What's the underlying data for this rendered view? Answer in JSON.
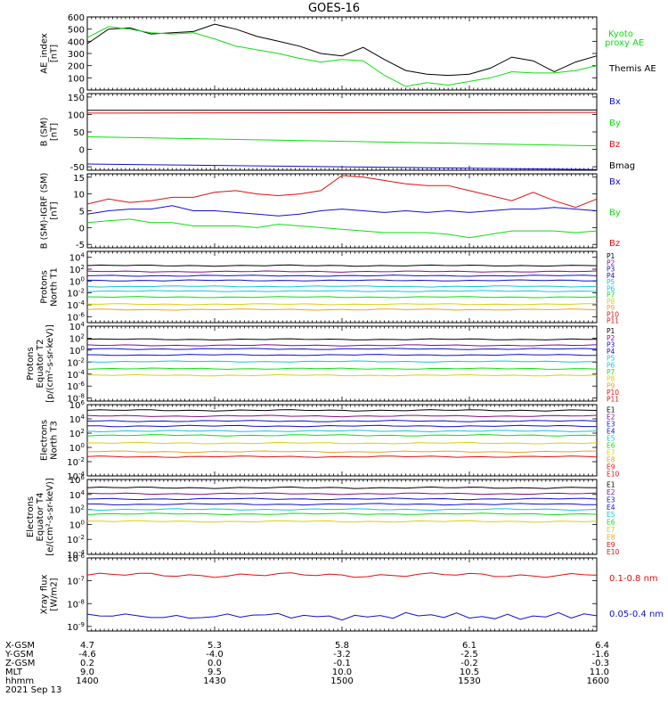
{
  "title": "GOES-16",
  "colors": {
    "black": "#000000",
    "red": "#e01010",
    "green": "#10dd10",
    "blue": "#1010cc",
    "cyan": "#10c8d8",
    "yellow": "#d8d010",
    "orange": "#f0a020",
    "purple": "#801080"
  },
  "chart_data": [
    {
      "type": "line",
      "panel": "ae",
      "ylabel": [
        "AE_index",
        "[nT]"
      ],
      "ylim": [
        0,
        600
      ],
      "yticks": [
        "600",
        "500",
        "400",
        "300",
        "200",
        "100",
        "0"
      ],
      "legend": [
        {
          "name": "Kyoto",
          "color": "green"
        },
        {
          "name": "proxy AE",
          "color": "green"
        },
        {
          "name": "Themis AE",
          "color": "black"
        }
      ],
      "x": [
        1400,
        1405,
        1410,
        1415,
        1420,
        1425,
        1430,
        1435,
        1440,
        1445,
        1450,
        1455,
        1500,
        1505,
        1510,
        1515,
        1520,
        1525,
        1530,
        1535,
        1540,
        1545,
        1550,
        1555,
        1600
      ],
      "series": [
        {
          "name": "Themis AE",
          "color": "black",
          "values": [
            380,
            500,
            510,
            460,
            470,
            480,
            540,
            500,
            440,
            400,
            360,
            300,
            280,
            350,
            250,
            160,
            130,
            120,
            130,
            180,
            270,
            240,
            150,
            230,
            280
          ]
        },
        {
          "name": "Kyoto proxy AE",
          "color": "green",
          "values": [
            430,
            520,
            500,
            470,
            460,
            470,
            420,
            360,
            330,
            300,
            260,
            230,
            250,
            240,
            120,
            30,
            60,
            40,
            70,
            100,
            150,
            140,
            140,
            160,
            200
          ]
        }
      ]
    },
    {
      "type": "line",
      "panel": "bsm",
      "ylabel": [
        "B (SM)",
        "[nT]"
      ],
      "ylim": [
        -60,
        160
      ],
      "yticks": [
        "150",
        "100",
        "50",
        "0",
        "-50"
      ],
      "legend": [
        {
          "name": "Bx",
          "color": "blue"
        },
        {
          "name": "By",
          "color": "green"
        },
        {
          "name": "Bz",
          "color": "red"
        },
        {
          "name": "Bmag",
          "color": "black"
        }
      ],
      "x": [
        1400,
        1600
      ],
      "series": [
        {
          "name": "Bmag",
          "color": "black",
          "values": [
            112,
            113
          ]
        },
        {
          "name": "Bz",
          "color": "red",
          "values": [
            104,
            106
          ]
        },
        {
          "name": "By",
          "color": "green",
          "values": [
            36,
            10
          ]
        },
        {
          "name": "Bx",
          "color": "blue",
          "values": [
            -42,
            -58
          ]
        }
      ]
    },
    {
      "type": "line",
      "panel": "bdiff",
      "ylabel": [
        "B (SM)-IGRF (SM)",
        "[nT]"
      ],
      "ylim": [
        -6,
        16
      ],
      "yticks": [
        "15",
        "10",
        "5",
        "0",
        "-5"
      ],
      "legend": [
        {
          "name": "Bx",
          "color": "blue"
        },
        {
          "name": "By",
          "color": "green"
        },
        {
          "name": "Bz",
          "color": "red"
        }
      ],
      "x": [
        1400,
        1405,
        1410,
        1415,
        1420,
        1425,
        1430,
        1435,
        1440,
        1445,
        1450,
        1455,
        1500,
        1505,
        1510,
        1515,
        1520,
        1525,
        1530,
        1535,
        1540,
        1545,
        1550,
        1555,
        1600
      ],
      "series": [
        {
          "name": "Bz",
          "color": "red",
          "values": [
            7,
            8.5,
            7.5,
            8,
            9,
            9,
            10.5,
            11,
            10,
            9.5,
            10,
            11,
            15.5,
            15,
            14,
            13,
            12.5,
            12.5,
            11,
            9.5,
            8,
            10.5,
            8,
            6,
            8.5
          ]
        },
        {
          "name": "Bx",
          "color": "blue",
          "values": [
            4,
            5,
            5.5,
            5.5,
            6.5,
            5,
            5,
            4.5,
            4,
            3.5,
            4,
            5,
            5.5,
            5,
            4.5,
            5,
            4.5,
            5,
            4.5,
            5,
            5.5,
            5.5,
            6,
            5.5,
            5
          ]
        },
        {
          "name": "By",
          "color": "green",
          "values": [
            1.5,
            2,
            2.5,
            1.5,
            1.5,
            0.5,
            0.5,
            0.5,
            0,
            1,
            0.5,
            0,
            -0.5,
            -1,
            -1.5,
            -1.5,
            -1.5,
            -2,
            -3,
            -2,
            -1,
            -1,
            -1,
            -1.5,
            -1
          ]
        }
      ]
    },
    {
      "type": "line",
      "panel": "p1",
      "log": true,
      "ylabel": [
        "Protons",
        "North T1"
      ],
      "yticks": [
        "10^4",
        "10^2",
        "10^0",
        "10^-2",
        "10^-4",
        "10^-6"
      ],
      "ylim_exp": [
        -7,
        5
      ],
      "legend": [
        {
          "name": "P1",
          "color": "black"
        },
        {
          "name": "P2",
          "color": "purple"
        },
        {
          "name": "P3",
          "color": "blue"
        },
        {
          "name": "P4",
          "color": "blue"
        },
        {
          "name": "P5",
          "color": "cyan"
        },
        {
          "name": "P6",
          "color": "cyan"
        },
        {
          "name": "P7",
          "color": "green"
        },
        {
          "name": "P8",
          "color": "yellow"
        },
        {
          "name": "P9",
          "color": "orange"
        },
        {
          "name": "P10",
          "color": "red"
        },
        {
          "name": "P11",
          "color": "red"
        }
      ],
      "levels": [
        {
          "color": "black",
          "exp": 2.6
        },
        {
          "color": "purple",
          "exp": 1.6
        },
        {
          "color": "blue",
          "exp": 0.9
        },
        {
          "color": "blue",
          "exp": 0.1
        },
        {
          "color": "cyan",
          "exp": -0.9
        },
        {
          "color": "cyan",
          "exp": -1.7
        },
        {
          "color": "green",
          "exp": -2.7
        },
        {
          "color": "yellow",
          "exp": -3.9
        },
        {
          "color": "orange",
          "exp": -4.8
        }
      ]
    },
    {
      "type": "line",
      "panel": "p2",
      "log": true,
      "ylabel": [
        "Protons",
        "Equator T2",
        "[p/(cm²-s-sr-keV)]"
      ],
      "yticks": [
        "10^4",
        "10^2",
        "10^0",
        "10^-2",
        "10^-4",
        "10^-6",
        "10^-8"
      ],
      "ylim_exp": [
        -8.5,
        4
      ],
      "legend": [
        {
          "name": "P1",
          "color": "black"
        },
        {
          "name": "P2",
          "color": "purple"
        },
        {
          "name": "P3",
          "color": "blue"
        },
        {
          "name": "P4",
          "color": "blue"
        },
        {
          "name": "P5",
          "color": "cyan"
        },
        {
          "name": "P6",
          "color": "cyan"
        },
        {
          "name": "P7",
          "color": "green"
        },
        {
          "name": "P8",
          "color": "yellow"
        },
        {
          "name": "P9",
          "color": "orange"
        },
        {
          "name": "P10",
          "color": "red"
        },
        {
          "name": "P11",
          "color": "red"
        }
      ],
      "levels": [
        {
          "color": "black",
          "exp": 1.8
        },
        {
          "color": "purple",
          "exp": 0.8
        },
        {
          "color": "blue",
          "exp": 0.2
        },
        {
          "color": "blue",
          "exp": -0.8
        },
        {
          "color": "cyan",
          "exp": -1.9
        },
        {
          "color": "green",
          "exp": -3.1
        },
        {
          "color": "yellow",
          "exp": -4.2
        }
      ]
    },
    {
      "type": "line",
      "panel": "e1",
      "log": true,
      "ylabel": [
        "Electrons",
        "North T3"
      ],
      "yticks": [
        "10^6",
        "10^4",
        "10^2",
        "10^0",
        "10^-2",
        "10^-4"
      ],
      "ylim_exp": [
        -4,
        6
      ],
      "legend": [
        {
          "name": "E1",
          "color": "black"
        },
        {
          "name": "E2",
          "color": "purple"
        },
        {
          "name": "E3",
          "color": "blue"
        },
        {
          "name": "E4",
          "color": "blue"
        },
        {
          "name": "E5",
          "color": "cyan"
        },
        {
          "name": "E6",
          "color": "green"
        },
        {
          "name": "E7",
          "color": "yellow"
        },
        {
          "name": "E8",
          "color": "orange"
        },
        {
          "name": "E9",
          "color": "red"
        },
        {
          "name": "E10",
          "color": "red"
        }
      ],
      "levels": [
        {
          "color": "black",
          "exp": 5.2
        },
        {
          "color": "purple",
          "exp": 4.4
        },
        {
          "color": "blue",
          "exp": 3.7
        },
        {
          "color": "blue",
          "exp": 3.0
        },
        {
          "color": "cyan",
          "exp": 2.3
        },
        {
          "color": "green",
          "exp": 1.7
        },
        {
          "color": "yellow",
          "exp": 0.6
        },
        {
          "color": "orange",
          "exp": -0.6
        },
        {
          "color": "red",
          "exp": -1.3
        }
      ]
    },
    {
      "type": "line",
      "panel": "e2",
      "log": true,
      "ylabel": [
        "Electrons",
        "Equator T4",
        "[e/(cm²-s-sr-keV)]"
      ],
      "yticks": [
        "10^6",
        "10^4",
        "10^2",
        "10^0",
        "10^-2",
        "10^-4"
      ],
      "ylim_exp": [
        -4,
        6
      ],
      "legend": [
        {
          "name": "E1",
          "color": "black"
        },
        {
          "name": "E2",
          "color": "purple"
        },
        {
          "name": "E3",
          "color": "blue"
        },
        {
          "name": "E4",
          "color": "blue"
        },
        {
          "name": "E5",
          "color": "cyan"
        },
        {
          "name": "E6",
          "color": "green"
        },
        {
          "name": "E7",
          "color": "yellow"
        },
        {
          "name": "E8",
          "color": "orange"
        },
        {
          "name": "E9",
          "color": "red"
        },
        {
          "name": "E10",
          "color": "red"
        }
      ],
      "levels": [
        {
          "color": "black",
          "exp": 4.9
        },
        {
          "color": "purple",
          "exp": 4.1
        },
        {
          "color": "blue",
          "exp": 3.4
        },
        {
          "color": "blue",
          "exp": 2.7
        },
        {
          "color": "cyan",
          "exp": 2.0
        },
        {
          "color": "green",
          "exp": 1.4
        },
        {
          "color": "yellow",
          "exp": 0.4
        }
      ]
    },
    {
      "type": "line",
      "panel": "xray",
      "log": true,
      "ylabel": [
        "Xray flux",
        "[W/m2]"
      ],
      "yticks": [
        "10^-6",
        "10^-7",
        "10^-8",
        "10^-9"
      ],
      "ylim_exp": [
        -9.2,
        -6
      ],
      "legend": [
        {
          "name": "0.1-0.8 nm",
          "color": "red"
        },
        {
          "name": "0.05-0.4 nm",
          "color": "blue"
        }
      ],
      "levels": [
        {
          "color": "red",
          "exp": -6.75
        },
        {
          "color": "blue",
          "exp": -8.55
        }
      ]
    }
  ],
  "xaxis": {
    "ticks": [
      1400,
      1430,
      1500,
      1530,
      1600
    ],
    "rows": [
      {
        "label": "X-GSM",
        "values": [
          "4.7",
          "5.3",
          "5.8",
          "6.1",
          "6.4"
        ]
      },
      {
        "label": "Y-GSM",
        "values": [
          "-4.6",
          "-4.0",
          "-3.2",
          "-2.5",
          "-1.6"
        ]
      },
      {
        "label": "Z-GSM",
        "values": [
          "0.2",
          "0.0",
          "-0.1",
          "-0.2",
          "-0.3"
        ]
      },
      {
        "label": "MLT",
        "values": [
          "9.0",
          "9.5",
          "10.0",
          "10.5",
          "11.0"
        ]
      },
      {
        "label": "hhmm",
        "values": [
          "1400",
          "1430",
          "1500",
          "1530",
          "1600"
        ]
      }
    ],
    "date": "2021 Sep 13"
  }
}
